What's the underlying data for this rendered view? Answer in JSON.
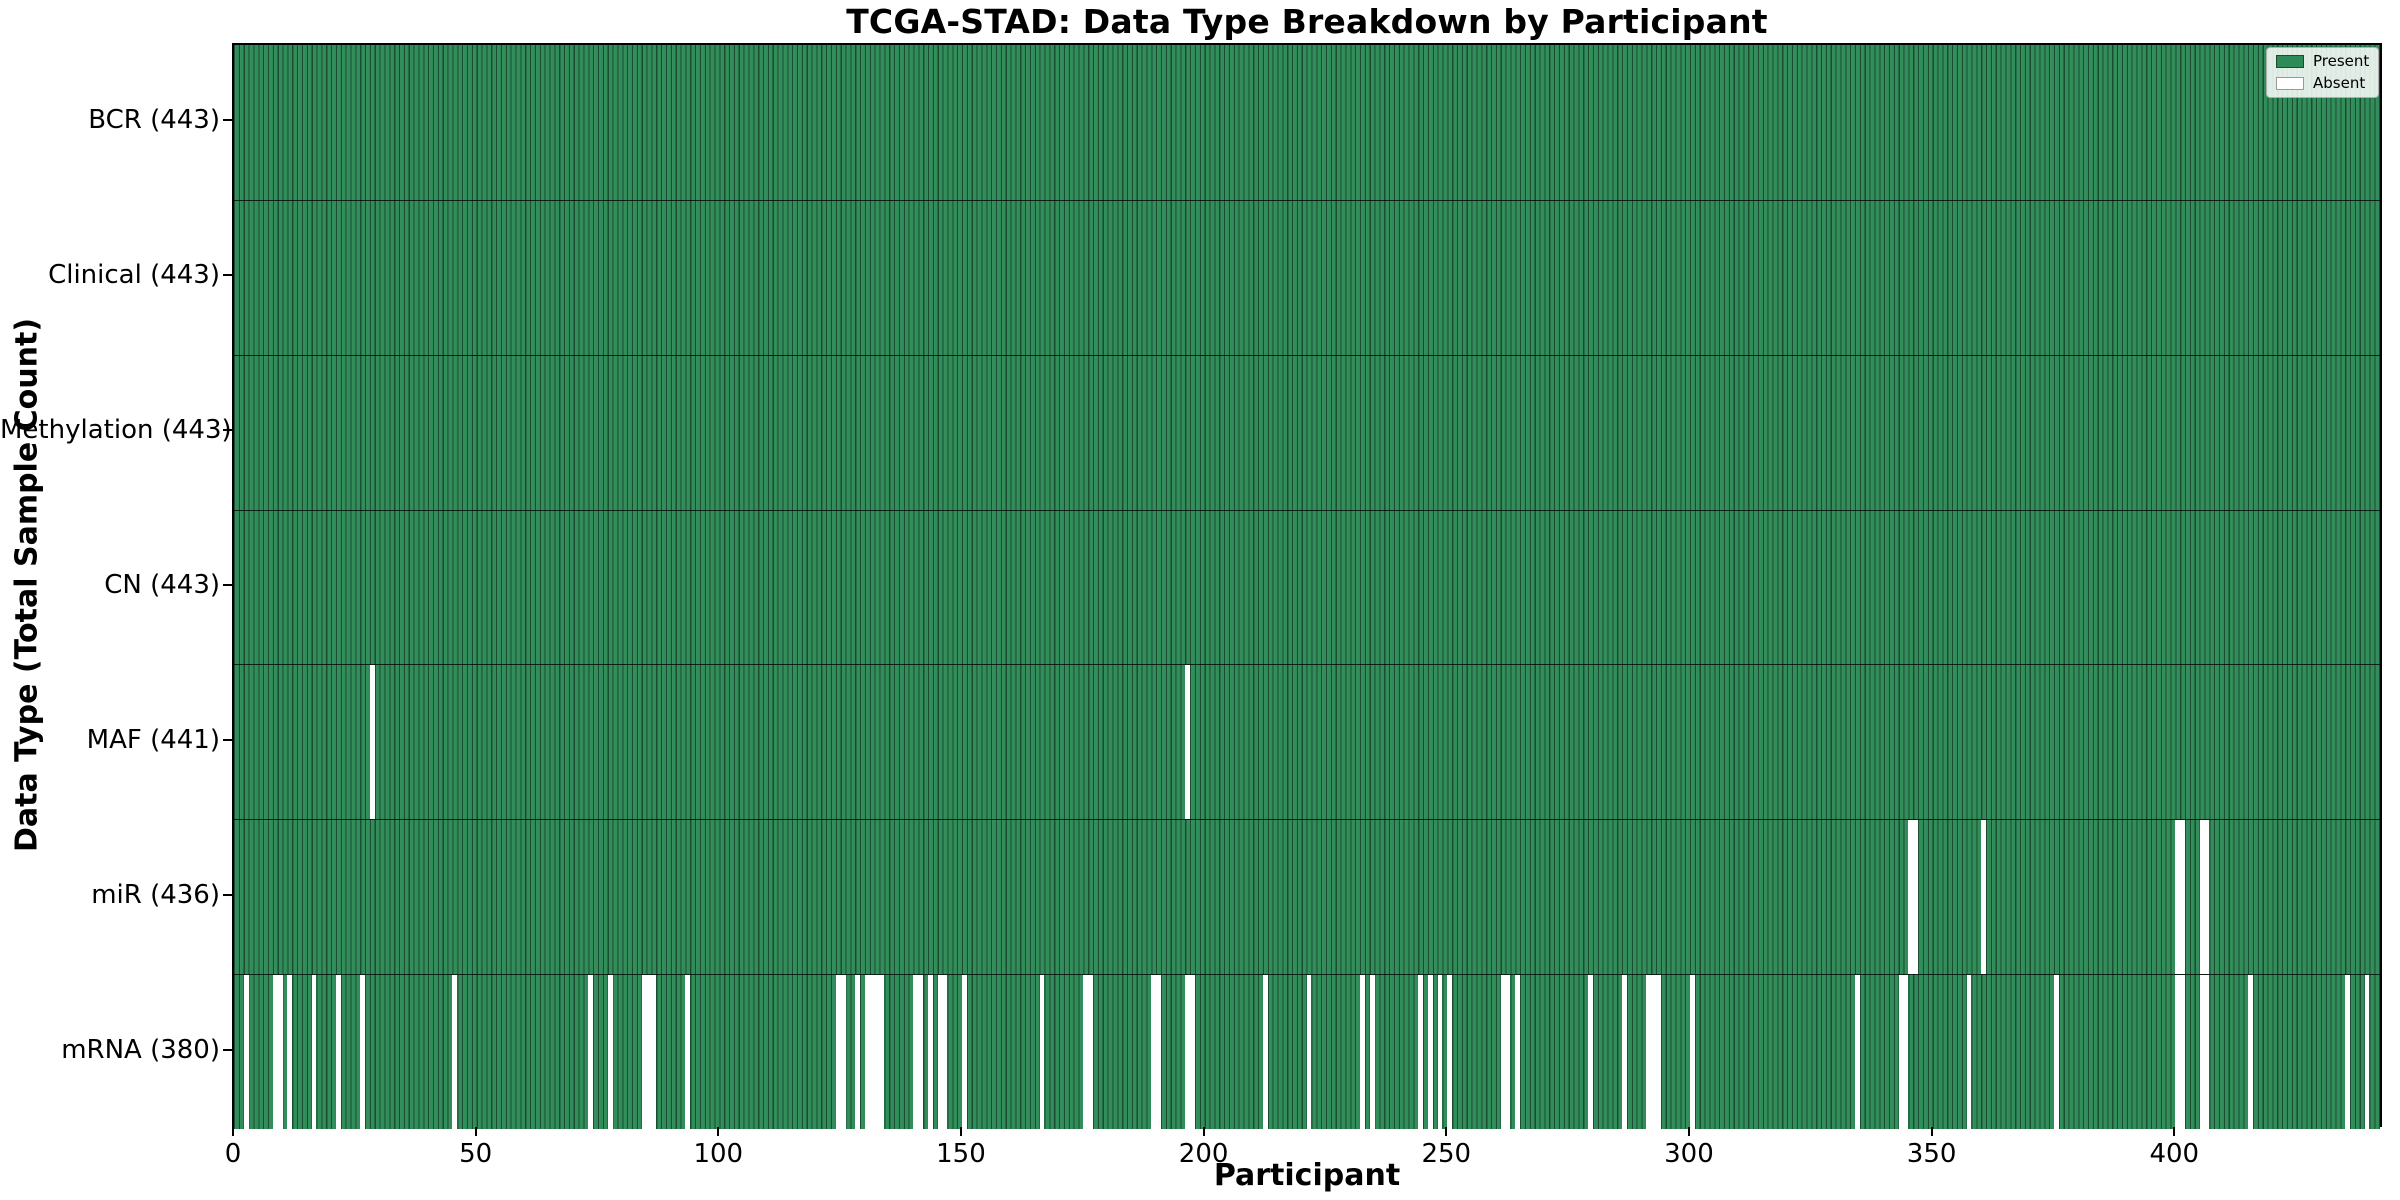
{
  "chart_data": {
    "type": "heatmap",
    "title": "TCGA-STAD: Data Type Breakdown by Participant",
    "xlabel": "Participant",
    "ylabel": "Data Type (Total Sample Count)",
    "legend_position": "upper right",
    "n_participants": 443,
    "x_ticks": [
      0,
      50,
      100,
      150,
      200,
      250,
      300,
      350,
      400
    ],
    "cell_states": {
      "present": 1,
      "absent": 0
    },
    "rows": [
      {
        "data_type": "BCR",
        "label": "BCR (443)",
        "present_count": 443,
        "absent_participants": []
      },
      {
        "data_type": "Clinical",
        "label": "Clinical (443)",
        "present_count": 443,
        "absent_participants": []
      },
      {
        "data_type": "Methylation",
        "label": "Methylation (443)",
        "present_count": 443,
        "absent_participants": []
      },
      {
        "data_type": "CN",
        "label": "CN (443)",
        "present_count": 443,
        "absent_participants": []
      },
      {
        "data_type": "MAF",
        "label": "MAF (441)",
        "present_count": 441,
        "absent_participants": [
          28,
          196
        ]
      },
      {
        "data_type": "miR",
        "label": "miR (436)",
        "present_count": 436,
        "absent_participants": [
          345,
          346,
          360,
          400,
          401,
          405,
          406
        ]
      },
      {
        "data_type": "mRNA",
        "label": "mRNA (380)",
        "present_count": 380,
        "absent_participants": [
          2,
          8,
          9,
          11,
          16,
          21,
          26,
          45,
          73,
          77,
          84,
          85,
          86,
          93,
          124,
          125,
          128,
          130,
          131,
          132,
          133,
          140,
          141,
          143,
          145,
          146,
          150,
          166,
          175,
          176,
          189,
          190,
          196,
          197,
          212,
          221,
          232,
          234,
          244,
          246,
          248,
          250,
          261,
          262,
          264,
          279,
          286,
          291,
          292,
          293,
          300,
          334,
          343,
          344,
          357,
          375,
          400,
          401,
          405,
          406,
          415,
          435,
          439
        ]
      }
    ],
    "legend": [
      {
        "label": "Present",
        "color": "#2e8b57"
      },
      {
        "label": "Absent",
        "color": "#ffffff"
      }
    ],
    "colors": {
      "present_fill": "#2e8b57",
      "bar_edge": "rgba(0,0,0,0.45)",
      "absent_fill": "#ffffff",
      "axis": "#000000",
      "background": "#ffffff"
    }
  }
}
